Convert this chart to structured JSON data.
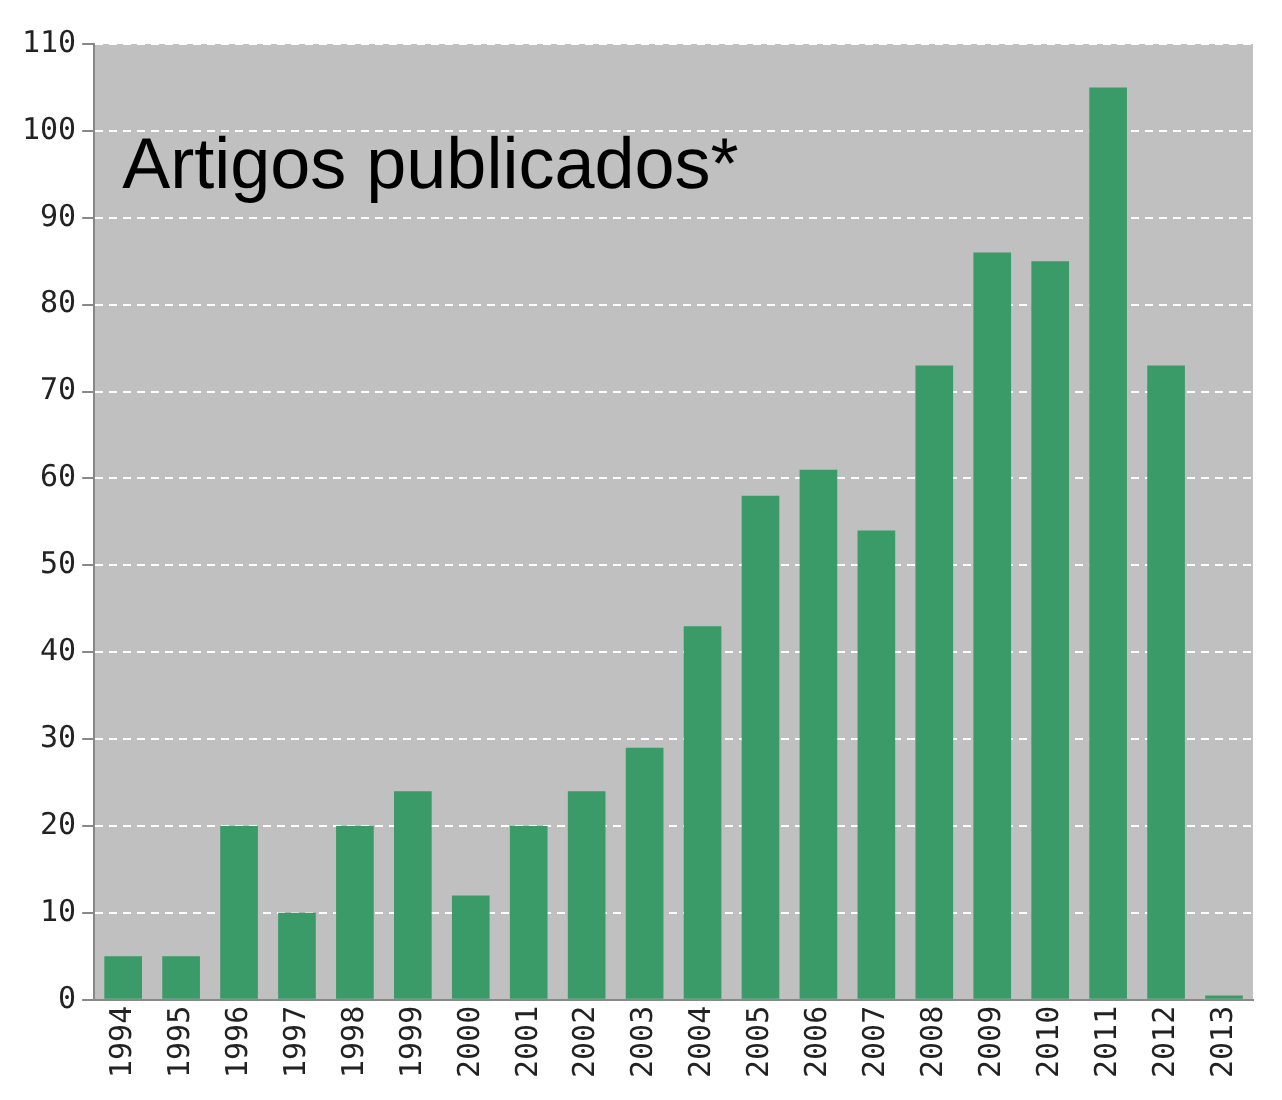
{
  "chart_data": {
    "type": "bar",
    "title": "Artigos publicados*",
    "categories": [
      "1994",
      "1995",
      "1996",
      "1997",
      "1998",
      "1999",
      "2000",
      "2001",
      "2002",
      "2003",
      "2004",
      "2005",
      "2006",
      "2007",
      "2008",
      "2009",
      "2010",
      "2011",
      "2012",
      "2013"
    ],
    "values": [
      5,
      5,
      20,
      10,
      20,
      24,
      12,
      20,
      24,
      29,
      43,
      58,
      61,
      54,
      73,
      86,
      85,
      105,
      73,
      0.5
    ],
    "color": "#3a9a68",
    "ylim": [
      0,
      110
    ],
    "yticks": [
      0,
      10,
      20,
      30,
      40,
      50,
      60,
      70,
      80,
      90,
      100,
      110
    ],
    "grid": "y",
    "legend": false
  }
}
